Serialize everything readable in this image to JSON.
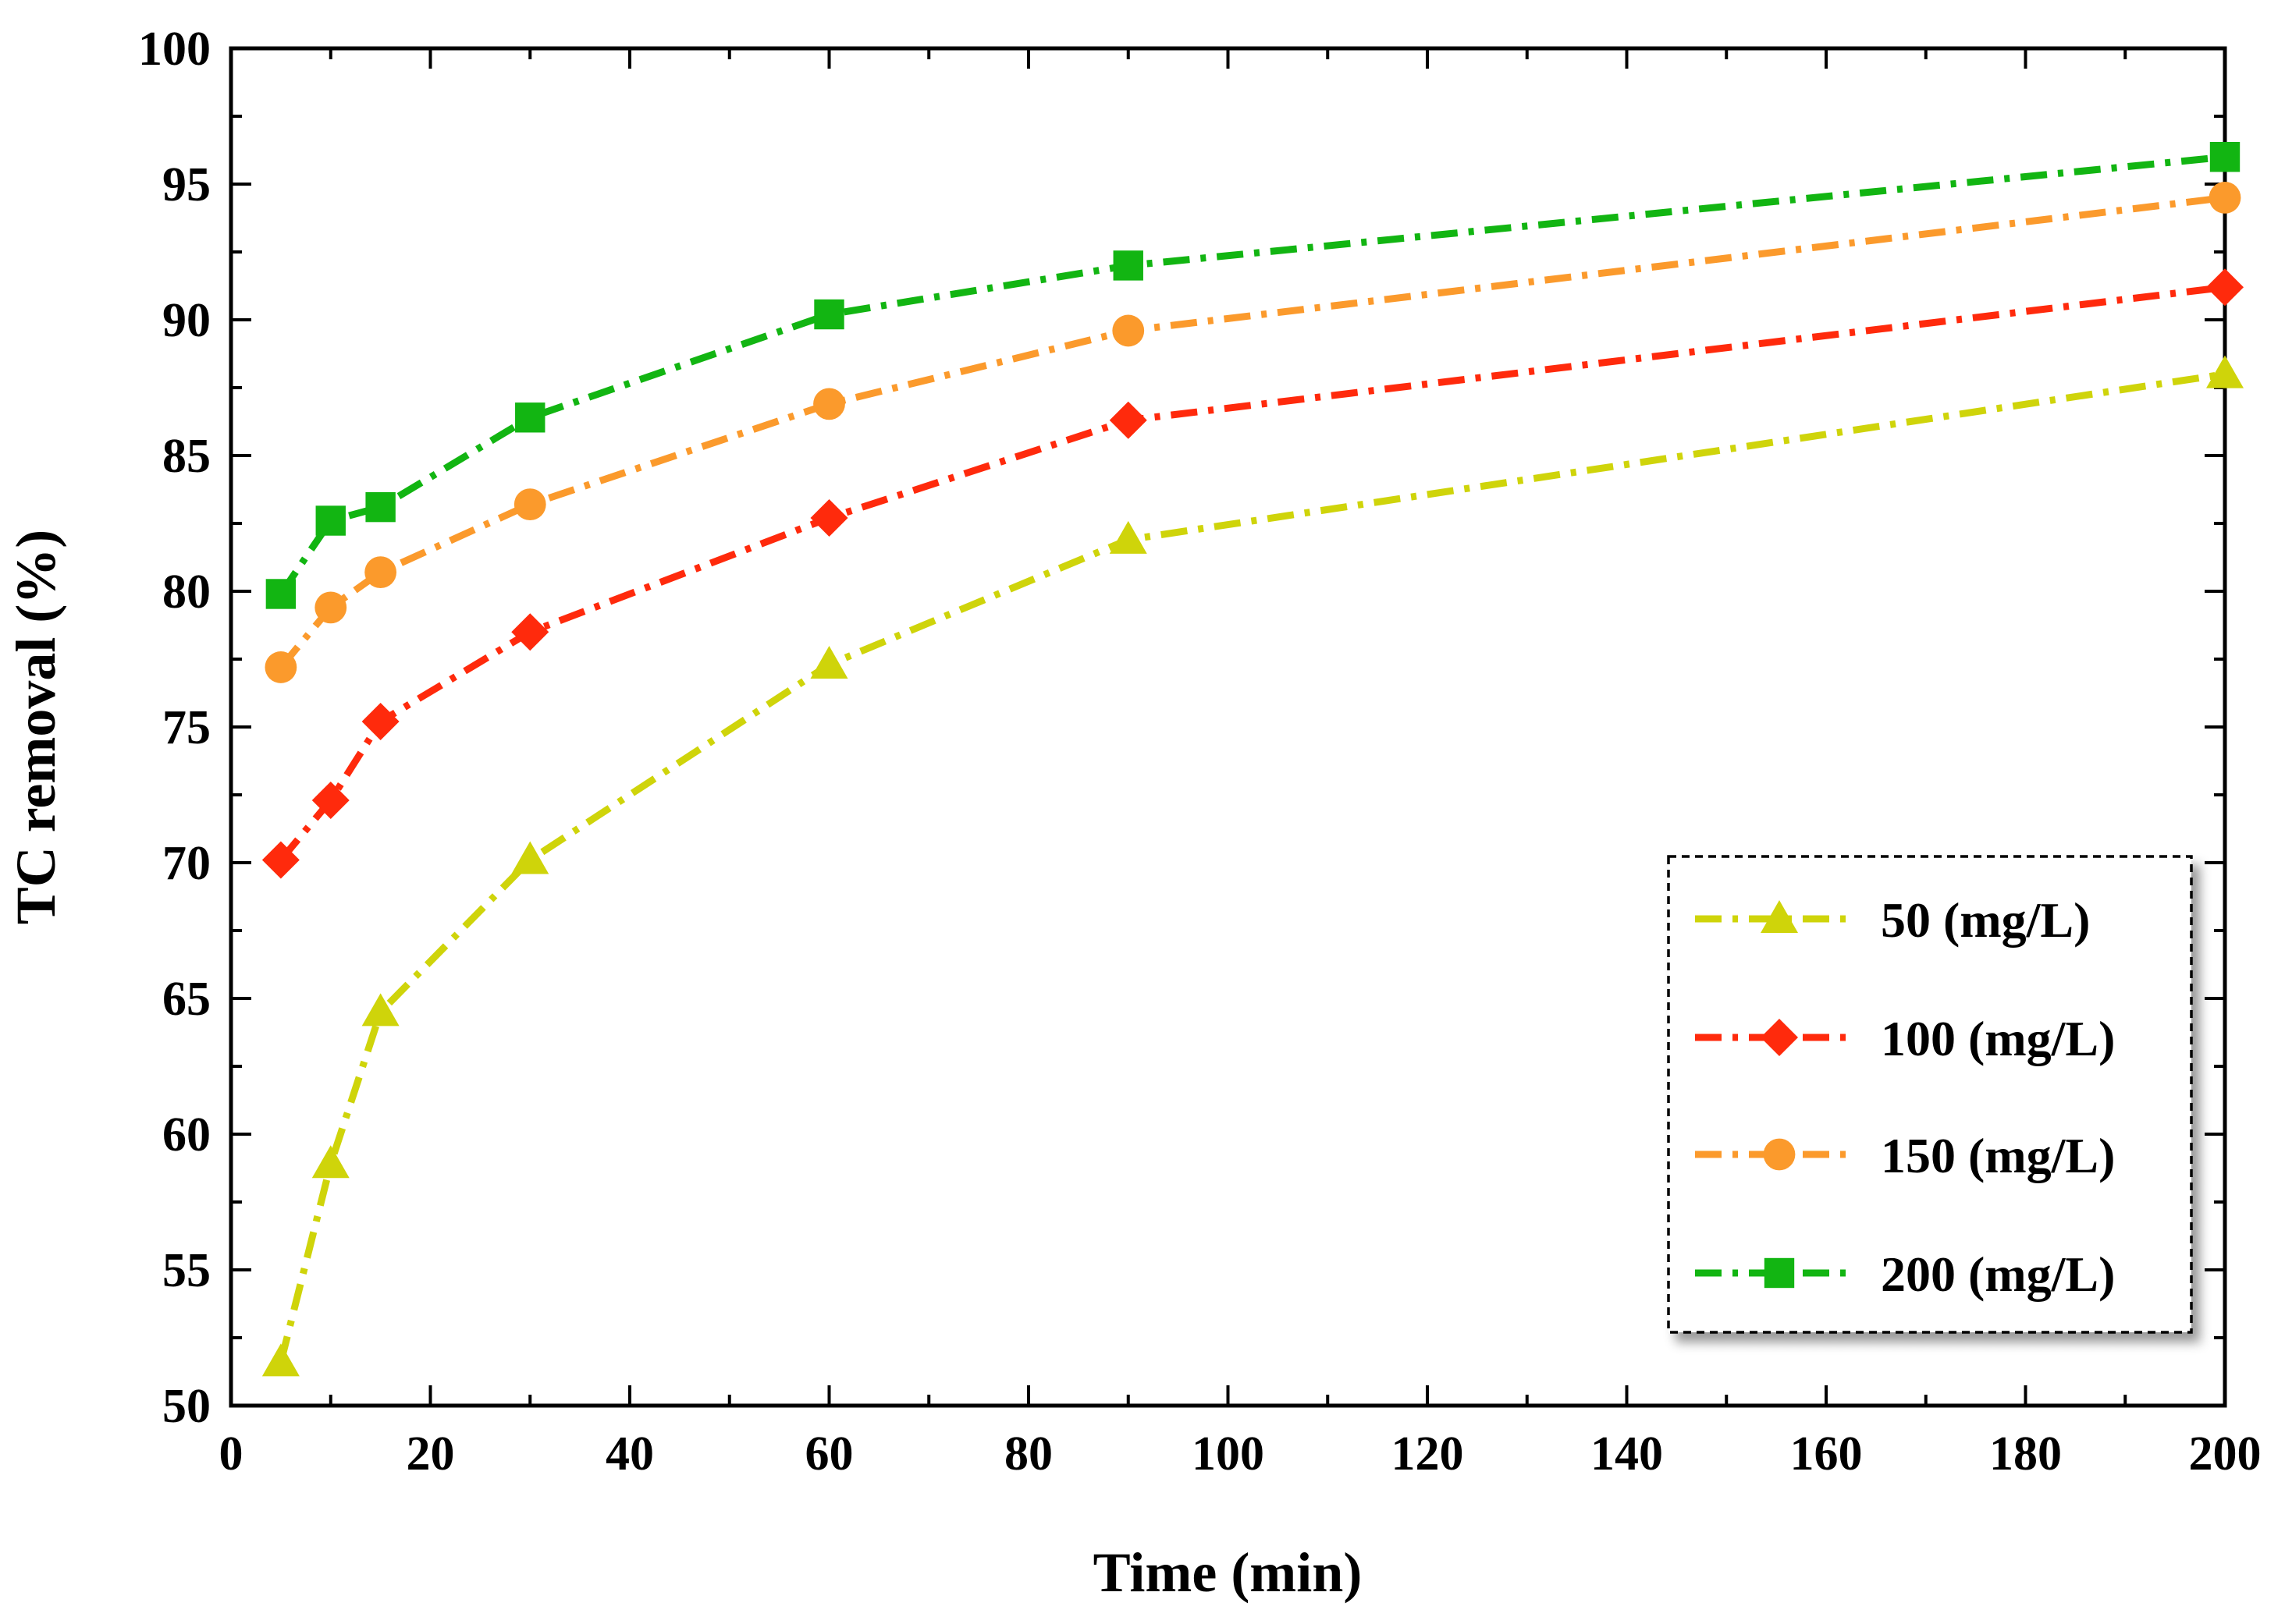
{
  "chart_data": {
    "type": "line",
    "title": "",
    "xlabel": "Time (min)",
    "ylabel": "TC removal (%)",
    "xlim": [
      0,
      200
    ],
    "ylim": [
      50,
      100
    ],
    "xticks": [
      "0",
      "20",
      "40",
      "60",
      "80",
      "100",
      "120",
      "140",
      "160",
      "180",
      "200"
    ],
    "yticks": [
      "50",
      "55",
      "60",
      "65",
      "70",
      "75",
      "80",
      "85",
      "90",
      "95",
      "100"
    ],
    "x": [
      5,
      10,
      15,
      30,
      60,
      90,
      200
    ],
    "series": [
      {
        "name": "50 (mg/L)",
        "marker": "triangle",
        "color": "#cfd40a",
        "values": [
          51.6,
          58.9,
          64.5,
          70.1,
          77.3,
          81.9,
          88.0
        ]
      },
      {
        "name": "100  (mg/L)",
        "marker": "diamond",
        "color": "#ff2a0c",
        "values": [
          70.1,
          72.3,
          75.2,
          78.5,
          82.7,
          86.3,
          91.2
        ]
      },
      {
        "name": "150  (mg/L)",
        "marker": "circle",
        "color": "#fb9a2c",
        "values": [
          77.2,
          79.4,
          80.7,
          83.2,
          86.9,
          89.6,
          94.5
        ]
      },
      {
        "name": "200  (mg/L)",
        "marker": "square",
        "color": "#12b512",
        "values": [
          79.9,
          82.6,
          83.1,
          86.4,
          90.2,
          92.0,
          96.0
        ]
      }
    ],
    "legend_position": "bottom-right",
    "grid": false
  }
}
